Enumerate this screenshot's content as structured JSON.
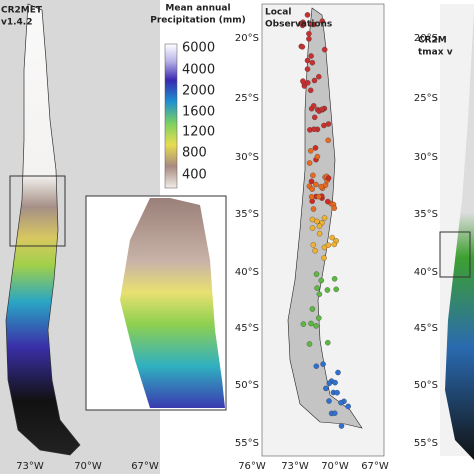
{
  "left_panel": {
    "title_lines": [
      "CR2MET",
      "v1.4.2"
    ],
    "colorbar": {
      "title_lines": [
        "Mean annual",
        "Precipitation (mm)"
      ],
      "labels": [
        "6000",
        "4000",
        "2000",
        "1600",
        "1200",
        "800",
        "400"
      ]
    },
    "lon_labels": [
      "73°W",
      "70°W",
      "67°W"
    ]
  },
  "middle_panel": {
    "title_lines": [
      "Local",
      "Observations"
    ],
    "lat_labels": [
      "20°S",
      "25°S",
      "30°S",
      "35°S",
      "40°S",
      "45°S",
      "50°S",
      "55°S"
    ],
    "lon_labels": [
      "76°W",
      "73°W",
      "70°W",
      "67°W"
    ]
  },
  "right_panel": {
    "title_lines": [
      "CR2M",
      "tmax v"
    ],
    "lat_labels": [
      "20°S",
      "25°S",
      "30°S",
      "35°S",
      "40°S",
      "45°S",
      "50°S",
      "55°S"
    ]
  }
}
